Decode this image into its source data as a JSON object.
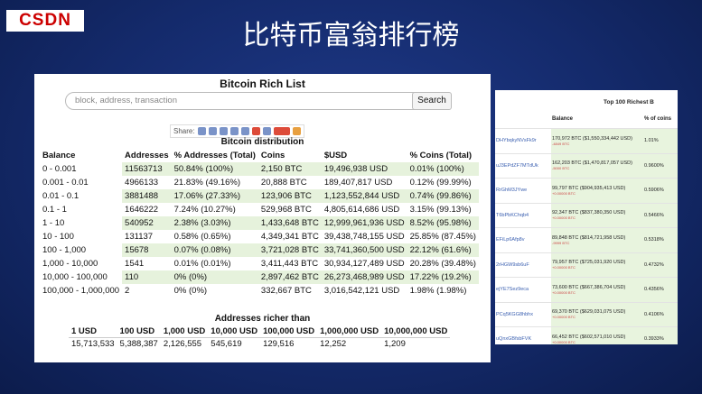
{
  "logo": "CSDN",
  "title": "比特币富翁排行榜",
  "panel": {
    "heading": "Bitcoin Rich List",
    "search_placeholder": "block, address, transaction",
    "search_button": "Search",
    "share_label": "Share:",
    "distribution": {
      "title": "Bitcoin distribution",
      "columns": [
        "Balance",
        "Addresses",
        "% Addresses (Total)",
        "Coins",
        "$USD",
        "% Coins (Total)"
      ],
      "rows": [
        [
          "0 - 0.001",
          "11563713",
          "50.84% (100%)",
          "2,150 BTC",
          "19,496,938 USD",
          "0.01% (100%)"
        ],
        [
          "0.001 - 0.01",
          "4966133",
          "21.83% (49.16%)",
          "20,888 BTC",
          "189,407,817 USD",
          "0.12% (99.99%)"
        ],
        [
          "0.01 - 0.1",
          "3881488",
          "17.06% (27.33%)",
          "123,906 BTC",
          "1,123,552,844 USD",
          "0.74% (99.86%)"
        ],
        [
          "0.1 - 1",
          "1646222",
          "7.24% (10.27%)",
          "529,968 BTC",
          "4,805,614,686 USD",
          "3.15% (99.13%)"
        ],
        [
          "1 - 10",
          "540952",
          "2.38% (3.03%)",
          "1,433,648 BTC",
          "12,999,961,936 USD",
          "8.52% (95.98%)"
        ],
        [
          "10 - 100",
          "131137",
          "0.58% (0.65%)",
          "4,349,341 BTC",
          "39,438,748,155 USD",
          "25.85% (87.45%)"
        ],
        [
          "100 - 1,000",
          "15678",
          "0.07% (0.08%)",
          "3,721,028 BTC",
          "33,741,360,500 USD",
          "22.12% (61.6%)"
        ],
        [
          "1,000 - 10,000",
          "1541",
          "0.01% (0.01%)",
          "3,411,443 BTC",
          "30,934,127,489 USD",
          "20.28% (39.48%)"
        ],
        [
          "10,000 - 100,000",
          "110",
          "0% (0%)",
          "2,897,462 BTC",
          "26,273,468,989 USD",
          "17.22% (19.2%)"
        ],
        [
          "100,000 - 1,000,000",
          "2",
          "0% (0%)",
          "332,667 BTC",
          "3,016,542,121 USD",
          "1.98% (1.98%)"
        ]
      ]
    },
    "richer": {
      "title": "Addresses richer than",
      "columns": [
        "1 USD",
        "100 USD",
        "1,000 USD",
        "10,000 USD",
        "100,000 USD",
        "1,000,000 USD",
        "10,000,000 USD"
      ],
      "values": [
        "15,713,533",
        "5,388,387",
        "2,126,555",
        "545,619",
        "129,516",
        "12,252",
        "1,209"
      ]
    }
  },
  "side": {
    "title": "Top 100 Richest B",
    "columns": [
      "Balance",
      "% of coins"
    ],
    "rows": [
      [
        "DHYbqkyNVsFk9r",
        "170,972 BTC ($1,550,334,442 USD)",
        "-4849 BTC",
        "1.01%"
      ],
      [
        "uJ3EPdZF7MTdUk",
        "162,203 BTC ($1,470,817,057 USD)",
        "-5000 BTC",
        "0.9600%"
      ],
      [
        "RrGhM3JYwe",
        "99,797 BTC ($904,935,413 USD)",
        "+0.00000 BTC",
        "0.5906%"
      ],
      [
        "T6bPbKChqb4",
        "92,347 BTC ($837,380,350 USD)",
        "+0.00000 BTC",
        "0.5466%"
      ],
      [
        "EFiLp6Afp8v",
        "89,848 BTC ($814,721,958 USD)",
        "-9999 BTC",
        "0.5318%"
      ],
      [
        "2rHGW9sb6uF",
        "79,957 BTC ($725,031,920 USD)",
        "+0.00000 BTC",
        "0.4732%"
      ],
      [
        "ejYE7Sez9eca",
        "73,600 BTC ($667,386,704 USD)",
        "+0.00000 BTC",
        "0.4356%"
      ],
      [
        "PCq5KGG8hbhx",
        "69,370 BTC ($629,031,075 USD)",
        "+0.00000 BTC",
        "0.4106%"
      ],
      [
        "uQnxGBfsbFVK",
        "66,452 BTC ($602,571,010 USD)",
        "+0.00000 BTC",
        "0.3933%"
      ],
      [
        "sobjWLwKhkR",
        "66,379 BTC ($601,906,665 USD)",
        "+0.00000 BTC",
        "0.3929%"
      ]
    ]
  }
}
